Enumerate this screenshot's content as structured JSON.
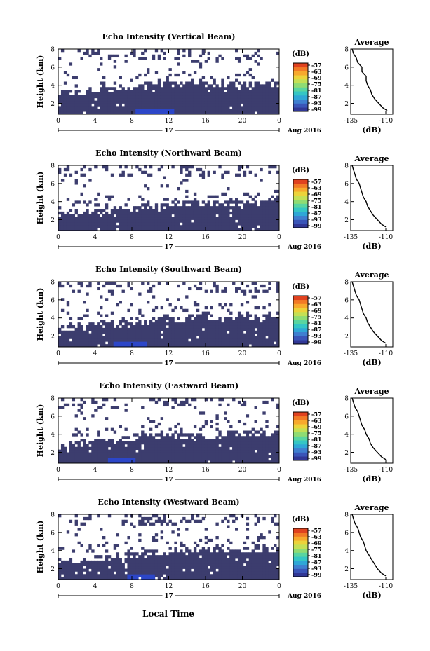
{
  "figure": {
    "xlabel": "Local Time",
    "date_label": "17",
    "month_label": "Aug 2016"
  },
  "colorbar": {
    "unit": "(dB)",
    "tick_labels": [
      "-57",
      "-63",
      "-69",
      "-75",
      "-81",
      "-87",
      "-93",
      "-99"
    ],
    "colors": [
      "#313795",
      "#3a55b8",
      "#3f7fd0",
      "#2fa7d6",
      "#35c6c4",
      "#59d5a0",
      "#8fdc73",
      "#c4e055",
      "#ecd33a",
      "#f7a92d",
      "#f27a26",
      "#e0421f"
    ]
  },
  "colors": {
    "echo_fill": "#3c3d6e",
    "echo_strong": "#2c46c8",
    "line": "#000000"
  },
  "chart_data": [
    {
      "type": "heatmap",
      "title": "Echo Intensity (Vertical Beam)",
      "ylabel": "Height (km)",
      "xticks": [
        "0",
        "4",
        "8",
        "12",
        "16",
        "20",
        "0"
      ],
      "yticks": [
        "2",
        "4",
        "6",
        "8"
      ],
      "xlim": [
        0,
        24
      ],
      "ylim": [
        0.8,
        8
      ],
      "top_height_km": [
        3.2,
        3.3,
        3.3,
        3.4,
        3.5,
        3.5,
        3.6,
        3.7,
        3.8,
        3.9,
        4.0,
        4.1,
        4.2,
        4.2,
        4.3,
        4.2,
        4.1,
        4.0,
        4.0,
        3.9,
        3.9,
        4.0,
        4.0,
        4.1
      ],
      "strong_period_hours": [
        8.5,
        12.5
      ],
      "avg": {
        "title": "Average",
        "xlabel": "(dB)",
        "xticks": [
          "-135",
          "-110"
        ],
        "yticks": [
          "2",
          "4",
          "6",
          "8"
        ],
        "xlim": [
          -135,
          -105
        ],
        "ylim": [
          0.8,
          8
        ],
        "height_km": [
          8,
          7.5,
          7,
          6.5,
          6,
          5.5,
          5,
          4.5,
          4,
          3.5,
          3,
          2.5,
          2,
          1.5,
          1.2
        ],
        "value_db": [
          -134,
          -133,
          -131,
          -130,
          -127,
          -127,
          -124,
          -124,
          -123,
          -121,
          -120,
          -118,
          -115,
          -112,
          -109
        ]
      }
    },
    {
      "type": "heatmap",
      "title": "Echo Intensity (Northward Beam)",
      "ylabel": "Height (km)",
      "xticks": [
        "0",
        "4",
        "8",
        "12",
        "16",
        "20",
        "0"
      ],
      "yticks": [
        "2",
        "4",
        "6",
        "8"
      ],
      "xlim": [
        0,
        24
      ],
      "ylim": [
        0.8,
        8
      ],
      "top_height_km": [
        2.6,
        2.7,
        2.8,
        2.8,
        2.9,
        3.0,
        3.1,
        3.2,
        3.3,
        3.4,
        3.5,
        3.6,
        3.7,
        3.7,
        3.8,
        3.8,
        3.8,
        3.9,
        3.9,
        3.9,
        3.9,
        4.0,
        4.0,
        4.0
      ],
      "strong_period_hours": [],
      "avg": {
        "title": "Average",
        "xlabel": "(dB)",
        "xticks": [
          "-135",
          "-110"
        ],
        "yticks": [
          "2",
          "4",
          "6",
          "8"
        ],
        "xlim": [
          -135,
          -105
        ],
        "ylim": [
          0.8,
          8
        ],
        "height_km": [
          8,
          7.5,
          7,
          6.5,
          6,
          5.5,
          5,
          4.5,
          4,
          3.5,
          3,
          2.5,
          2,
          1.5,
          1.2
        ],
        "value_db": [
          -134,
          -133,
          -132,
          -131,
          -129,
          -128,
          -127,
          -126,
          -124,
          -123,
          -121,
          -119,
          -116,
          -113,
          -110
        ]
      }
    },
    {
      "type": "heatmap",
      "title": "Echo Intensity (Southward Beam)",
      "ylabel": "Height (km)",
      "xticks": [
        "0",
        "4",
        "8",
        "12",
        "16",
        "20",
        "0"
      ],
      "yticks": [
        "2",
        "4",
        "6",
        "8"
      ],
      "xlim": [
        0,
        24
      ],
      "ylim": [
        0.8,
        8
      ],
      "top_height_km": [
        2.8,
        2.9,
        3.0,
        3.1,
        3.2,
        3.2,
        3.3,
        3.4,
        3.5,
        3.6,
        3.7,
        3.8,
        3.9,
        3.9,
        4.0,
        4.0,
        4.0,
        3.9,
        3.9,
        4.0,
        4.0,
        4.1,
        4.1,
        4.1
      ],
      "strong_period_hours": [
        6.0,
        9.5
      ],
      "avg": {
        "title": "Average",
        "xlabel": "(dB)",
        "xticks": [
          "-135",
          "-110"
        ],
        "yticks": [
          "2",
          "4",
          "6",
          "8"
        ],
        "xlim": [
          -135,
          -105
        ],
        "ylim": [
          0.8,
          8
        ],
        "height_km": [
          8,
          7.5,
          7,
          6.5,
          6,
          5.5,
          5,
          4.5,
          4,
          3.5,
          3,
          2.5,
          2,
          1.5,
          1.2
        ],
        "value_db": [
          -134,
          -133,
          -132,
          -131,
          -129,
          -128,
          -127,
          -126,
          -124,
          -123,
          -121,
          -119,
          -116,
          -113,
          -110
        ]
      }
    },
    {
      "type": "heatmap",
      "title": "Echo Intensity (Eastward Beam)",
      "ylabel": "Height (km)",
      "xticks": [
        "0",
        "4",
        "8",
        "12",
        "16",
        "20",
        "0"
      ],
      "yticks": [
        "2",
        "4",
        "6",
        "8"
      ],
      "xlim": [
        0,
        24
      ],
      "ylim": [
        0.8,
        8
      ],
      "top_height_km": [
        2.7,
        2.8,
        2.9,
        3.0,
        3.1,
        3.2,
        3.3,
        3.4,
        3.5,
        3.6,
        3.7,
        3.8,
        3.8,
        3.9,
        3.9,
        3.9,
        3.9,
        3.9,
        4.0,
        4.0,
        4.0,
        4.1,
        4.1,
        4.1
      ],
      "strong_period_hours": [
        5.5,
        8.5
      ],
      "avg": {
        "title": "Average",
        "xlabel": "(dB)",
        "xticks": [
          "-135",
          "-110"
        ],
        "yticks": [
          "2",
          "4",
          "6",
          "8"
        ],
        "xlim": [
          -135,
          -105
        ],
        "ylim": [
          0.8,
          8
        ],
        "height_km": [
          8,
          7.5,
          7,
          6.5,
          6,
          5.5,
          5,
          4.5,
          4,
          3.5,
          3,
          2.5,
          2,
          1.5,
          1.2
        ],
        "value_db": [
          -134,
          -133,
          -132,
          -130,
          -129,
          -128,
          -127,
          -125,
          -124,
          -122,
          -121,
          -119,
          -116,
          -113,
          -110
        ]
      }
    },
    {
      "type": "heatmap",
      "title": "Echo Intensity (Westward Beam)",
      "ylabel": "Height (km)",
      "xticks": [
        "0",
        "4",
        "8",
        "12",
        "16",
        "20",
        "0"
      ],
      "yticks": [
        "2",
        "4",
        "6",
        "8"
      ],
      "xlim": [
        0,
        24
      ],
      "ylim": [
        0.8,
        8
      ],
      "top_height_km": [
        2.9,
        3.0,
        3.0,
        3.1,
        3.2,
        3.3,
        3.4,
        3.5,
        3.6,
        3.7,
        3.8,
        3.9,
        4.0,
        4.0,
        4.1,
        4.1,
        4.0,
        4.0,
        4.0,
        4.0,
        4.1,
        4.1,
        4.2,
        4.2
      ],
      "strong_period_hours": [
        7.5,
        10.5
      ],
      "avg": {
        "title": "Average",
        "xlabel": "(dB)",
        "xticks": [
          "-135",
          "-110"
        ],
        "yticks": [
          "2",
          "4",
          "6",
          "8"
        ],
        "xlim": [
          -135,
          -105
        ],
        "ylim": [
          0.8,
          8
        ],
        "height_km": [
          8,
          7.5,
          7,
          6.5,
          6,
          5.5,
          5,
          4.5,
          4,
          3.5,
          3,
          2.5,
          2,
          1.5,
          1.2
        ],
        "value_db": [
          -134,
          -133,
          -132,
          -130,
          -129,
          -128,
          -126,
          -125,
          -124,
          -122,
          -120,
          -118,
          -116,
          -113,
          -110
        ]
      }
    }
  ]
}
